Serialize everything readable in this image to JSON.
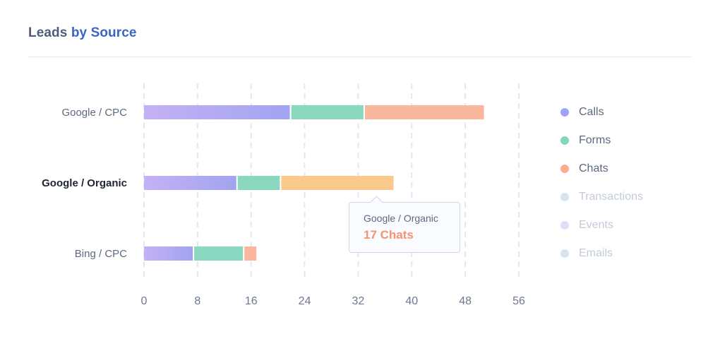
{
  "header": {
    "title_part1": "Leads",
    "title_part2": "by Source"
  },
  "colors": {
    "calls_start": "#c5b1f5",
    "calls_end": "#a1a4f1",
    "forms": "#8ad8bf",
    "chats": "#fbb79d",
    "chats_highlight": "#fbc98c",
    "inactive": "#d9e1f3",
    "gridline": "#e3e7ee",
    "tick": "#6d7890",
    "label": "#5d6881",
    "label_active": "#1f2433"
  },
  "legend": [
    {
      "label": "Calls",
      "color": "#a0a3ee",
      "active": true
    },
    {
      "label": "Forms",
      "color": "#86d6b9",
      "active": true
    },
    {
      "label": "Chats",
      "color": "#fbae92",
      "active": true
    },
    {
      "label": "Transactions",
      "color": "#d9e1f3",
      "active": false
    },
    {
      "label": "Events",
      "color": "#d9e1f3",
      "active": false
    },
    {
      "label": "Emails",
      "color": "#d9e1f3",
      "active": false
    }
  ],
  "tooltip": {
    "label": "Google / Organic",
    "value": "17 Chats"
  },
  "chart_data": {
    "type": "bar",
    "orientation": "horizontal",
    "stacked": true,
    "title": "Leads by Source",
    "categories": [
      "Google / CPC",
      "Google / Organic",
      "Bing / CPC"
    ],
    "highlighted_category": "Google / Organic",
    "series": [
      {
        "name": "Calls",
        "values": [
          22,
          14,
          7.5
        ]
      },
      {
        "name": "Forms",
        "values": [
          11,
          6.5,
          7.5
        ]
      },
      {
        "name": "Chats",
        "values": [
          18,
          17,
          2
        ]
      }
    ],
    "xlim": [
      0,
      56
    ],
    "xticks": [
      0,
      8,
      16,
      24,
      32,
      40,
      48,
      56
    ],
    "grid": "vertical-dashed",
    "legend_position": "right"
  }
}
